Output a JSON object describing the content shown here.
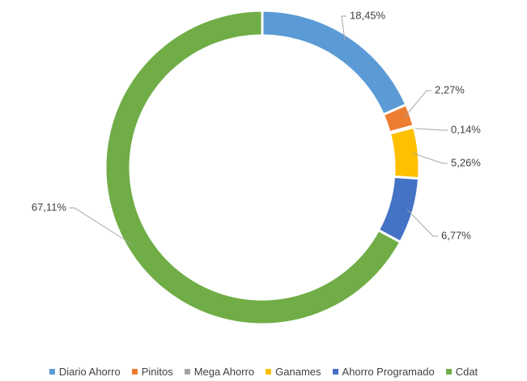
{
  "chart_data": {
    "type": "donut",
    "categories": [
      "Diario Ahorro",
      "Pinitos",
      "Mega Ahorro",
      "Ganames",
      "Ahorro Programado",
      "Cdat"
    ],
    "values": [
      18.45,
      2.27,
      0.14,
      5.26,
      6.77,
      67.11
    ],
    "value_labels": [
      "18,45%",
      "2,27%",
      "0,14%",
      "5,26%",
      "6,77%",
      "67,11%"
    ],
    "colors": [
      "#5b9bd5",
      "#ed7d31",
      "#a5a5a5",
      "#ffc000",
      "#4472c4",
      "#70ad47"
    ],
    "legend": "bottom"
  }
}
